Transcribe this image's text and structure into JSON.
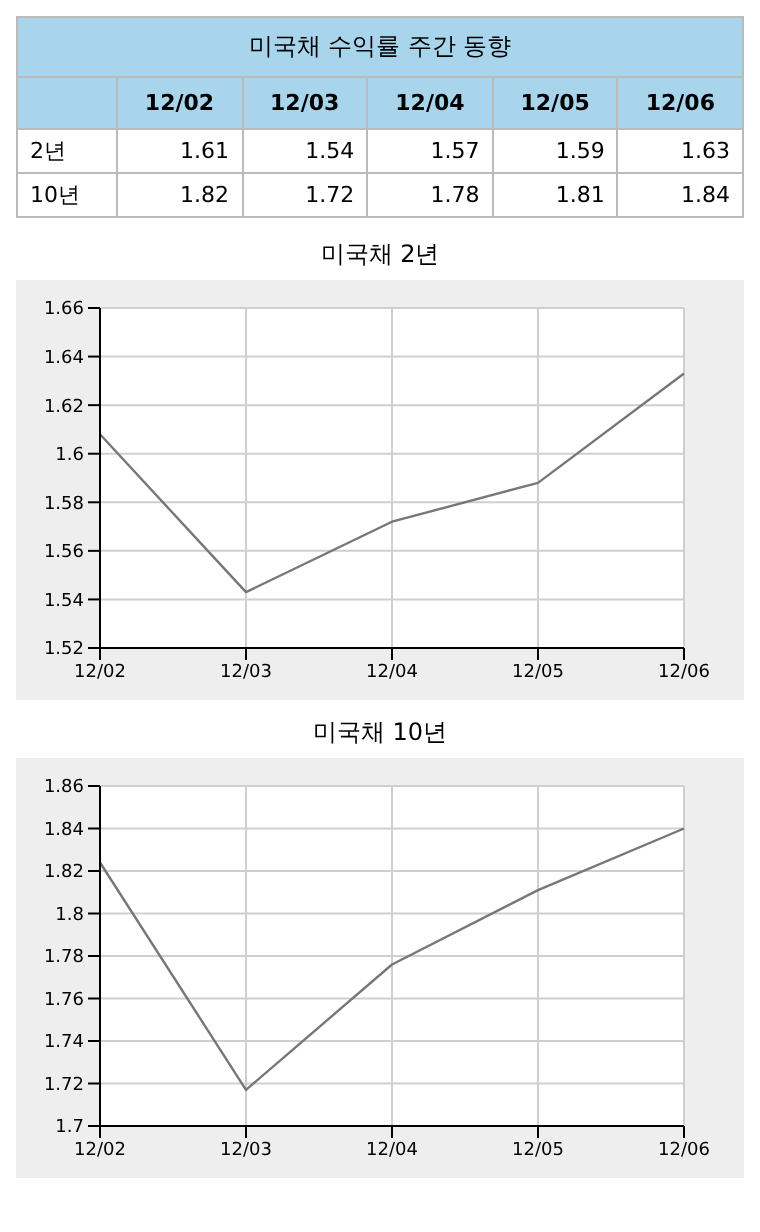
{
  "chart_data": [
    {
      "type": "other",
      "title": "미국채 수익률 주간 동향",
      "categories": [
        "12/02",
        "12/03",
        "12/04",
        "12/05",
        "12/06"
      ],
      "data_labels": true,
      "series": [
        {
          "name": "2년",
          "values": [
            1.61,
            1.54,
            1.57,
            1.59,
            1.63
          ]
        },
        {
          "name": "10년",
          "values": [
            1.82,
            1.72,
            1.78,
            1.81,
            1.84
          ]
        }
      ]
    },
    {
      "type": "line",
      "title": "미국채 2년",
      "categories": [
        "12/02",
        "12/03",
        "12/04",
        "12/05",
        "12/06"
      ],
      "ylim": [
        1.52,
        1.66
      ],
      "yticks": [
        1.52,
        1.54,
        1.56,
        1.58,
        1.6,
        1.62,
        1.64,
        1.66
      ],
      "grid": true,
      "series": [
        {
          "color": "#777777",
          "values": [
            1.608,
            1.543,
            1.572,
            1.588,
            1.633
          ]
        }
      ]
    },
    {
      "type": "line",
      "title": "미국채 10년",
      "categories": [
        "12/02",
        "12/03",
        "12/04",
        "12/05",
        "12/06"
      ],
      "ylim": [
        1.7,
        1.86
      ],
      "yticks": [
        1.7,
        1.72,
        1.74,
        1.76,
        1.78,
        1.8,
        1.82,
        1.84,
        1.86
      ],
      "grid": true,
      "series": [
        {
          "color": "#777777",
          "values": [
            1.824,
            1.717,
            1.776,
            1.811,
            1.84
          ]
        }
      ]
    }
  ]
}
